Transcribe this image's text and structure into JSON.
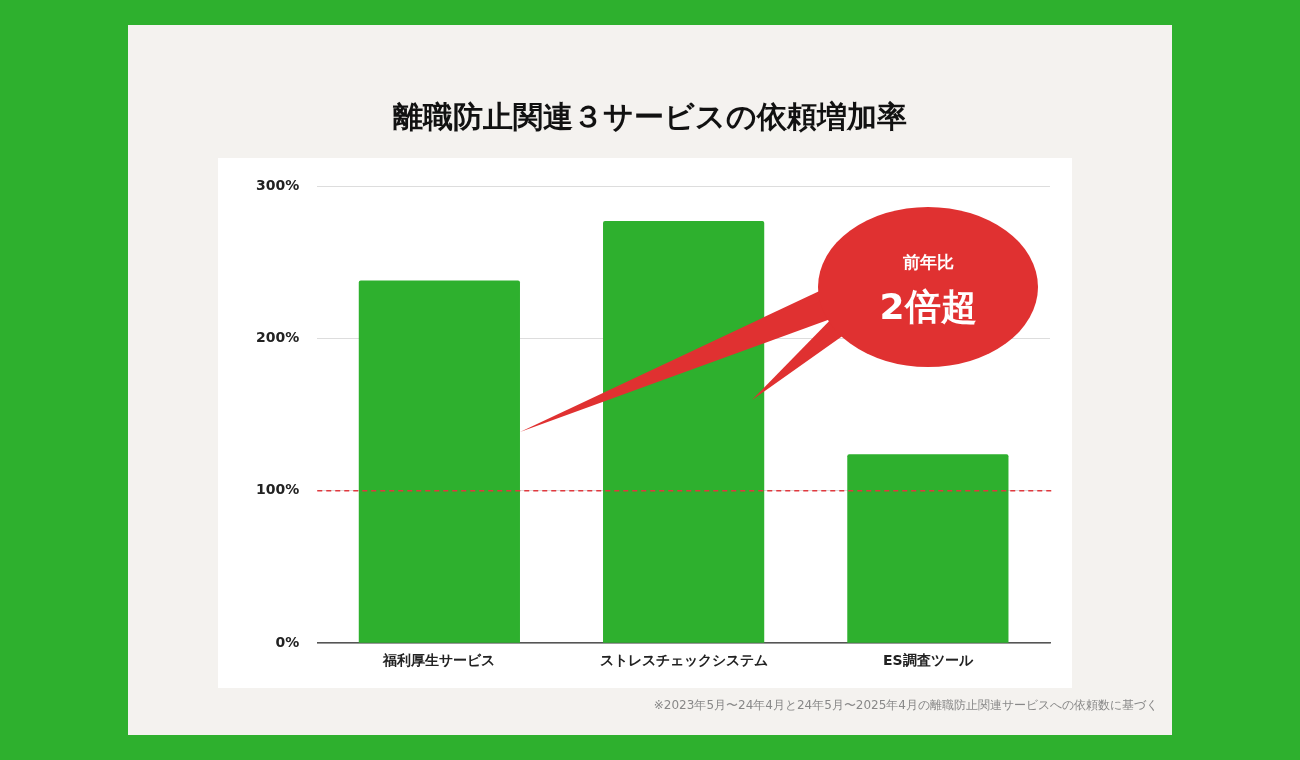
{
  "chart_data": {
    "type": "bar",
    "title": "離職防止関連３サービスの依頼増加率",
    "categories": [
      "福利厚生サービス",
      "ストレスチェックシステム",
      "ES調査ツール"
    ],
    "values": [
      238,
      277,
      124
    ],
    "color": "#2eb02e",
    "ylim": [
      0,
      300
    ],
    "yticks": [
      {
        "value": 0,
        "label": "0%"
      },
      {
        "value": 100,
        "label": "100%"
      },
      {
        "value": 200,
        "label": "200%"
      },
      {
        "value": 300,
        "label": "300%"
      }
    ],
    "grid": "y",
    "ref_lines": [
      {
        "axis": "y",
        "value": 100,
        "color": "#e0393e",
        "line_style": "dashed"
      }
    ],
    "annotations": [
      "前年比",
      "2倍超",
      "※2023年5月〜24年4月と24年5月〜2025年4月の離職防止関連サービスへの依頼数に基づく"
    ]
  }
}
